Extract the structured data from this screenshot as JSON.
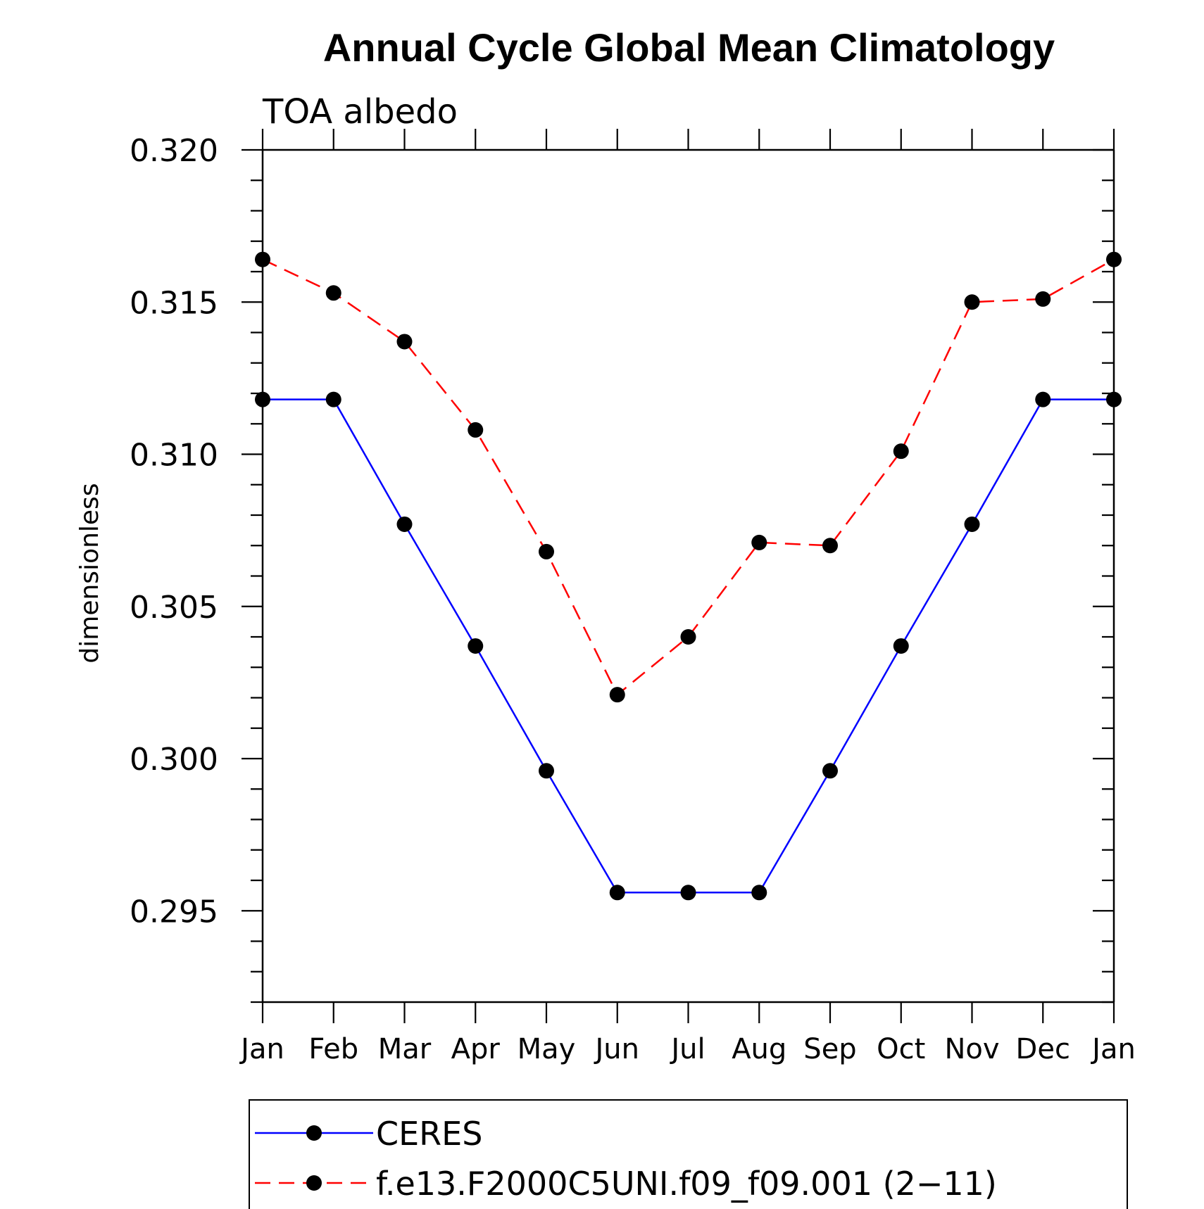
{
  "chart_data": {
    "type": "line",
    "title": "Annual Cycle Global Mean Climatology",
    "subtitle": "TOA albedo",
    "xlabel": "",
    "ylabel": "dimensionless",
    "categories": [
      "Jan",
      "Feb",
      "Mar",
      "Apr",
      "May",
      "Jun",
      "Jul",
      "Aug",
      "Sep",
      "Oct",
      "Nov",
      "Dec",
      "Jan"
    ],
    "ylim": [
      0.292,
      0.32
    ],
    "yticks": [
      0.295,
      0.3,
      0.305,
      0.31,
      0.315,
      0.32
    ],
    "ytick_labels": [
      "0.295",
      "0.300",
      "0.305",
      "0.310",
      "0.315",
      "0.320"
    ],
    "minor_tick_step": 0.001,
    "grid": false,
    "legend_position": "bottom",
    "series": [
      {
        "name": "CERES",
        "color": "#0000ff",
        "dash": "solid",
        "marker": "filled-circle",
        "marker_color": "#000000",
        "values": [
          0.3118,
          0.3118,
          0.3077,
          0.3037,
          0.2996,
          0.2956,
          0.2956,
          0.2956,
          0.2996,
          0.3037,
          0.3077,
          0.3118,
          0.3118
        ]
      },
      {
        "name": "f.e13.F2000C5UNI.f09_f09.001 (2−11)",
        "color": "#ff0000",
        "dash": "dashed",
        "marker": "filled-circle",
        "marker_color": "#000000",
        "values": [
          0.3164,
          0.3153,
          0.3137,
          0.3108,
          0.3068,
          0.3021,
          0.304,
          0.3071,
          0.307,
          0.3101,
          0.315,
          0.3151,
          0.3164
        ]
      }
    ]
  }
}
